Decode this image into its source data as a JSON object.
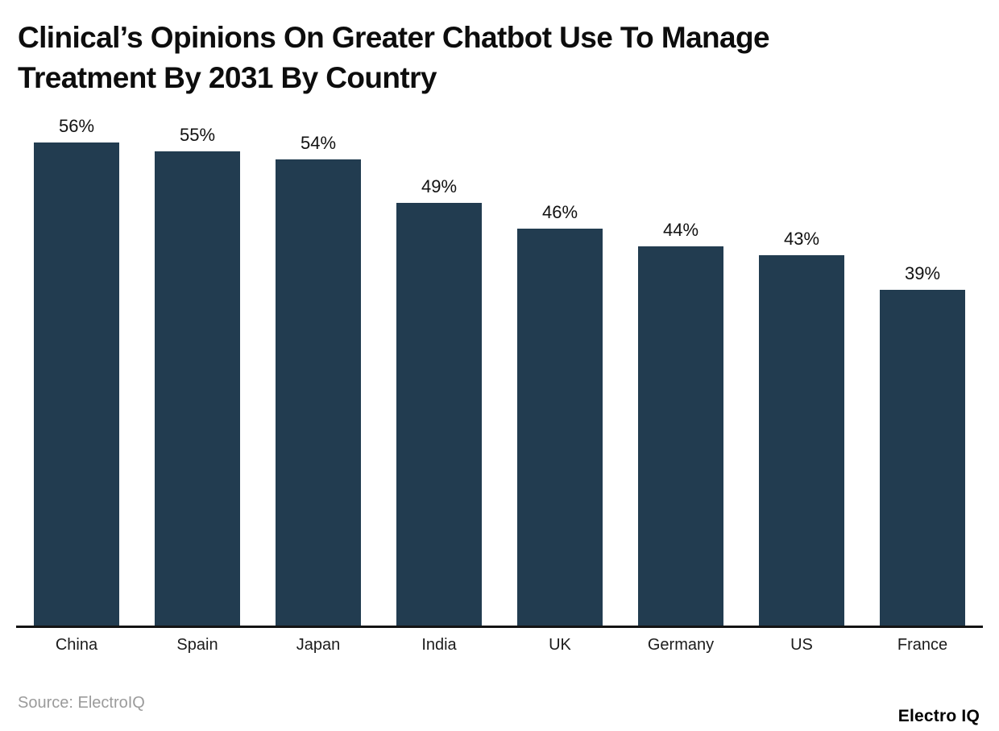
{
  "title": {
    "line1": "Clinical’s Opinions On Greater Chatbot Use To Manage",
    "line2": "Treatment By 2031 By Country"
  },
  "chart_data": {
    "type": "bar",
    "title": "Clinical’s Opinions On Greater Chatbot Use To Manage Treatment By 2031 By Country",
    "categories": [
      "China",
      "Spain",
      "Japan",
      "India",
      "UK",
      "Germany",
      "US",
      "France"
    ],
    "values": [
      56,
      55,
      54,
      49,
      46,
      44,
      43,
      39
    ],
    "value_suffix": "%",
    "xlabel": "",
    "ylabel": "",
    "ylim": [
      0,
      60
    ],
    "grid": "off",
    "legend": "none",
    "data_labels": "above-bars",
    "bar_color": "#223C50",
    "axis_color": "#141414",
    "label_color": "#1C1C1C"
  },
  "footer": {
    "source_label": "Source: ElectroIQ",
    "brand": "Electro IQ"
  },
  "colors": {
    "background": "#FFFFFF",
    "bar": "#223C50",
    "title_text": "#0D0D0D",
    "source_text": "#9B9B9B"
  }
}
